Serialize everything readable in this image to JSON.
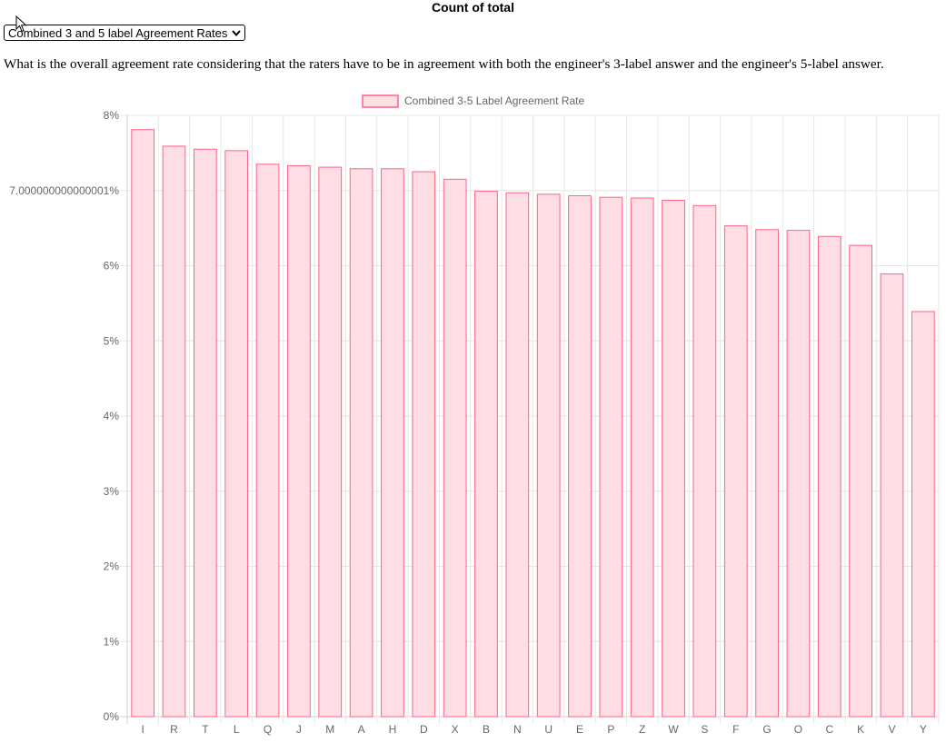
{
  "header": {
    "title": "Count of total"
  },
  "selector": {
    "selected": "Combined 3 and 5 label Agreement Rates",
    "icon": "chevron-down-icon"
  },
  "description": "What is the overall agreement rate considering that the raters have to be in agreement with both the engineer's 3-label answer and the engineer's 5-label answer.",
  "chart_data": {
    "type": "bar",
    "title": "",
    "xlabel": "",
    "ylabel": "",
    "ylim": [
      0,
      8
    ],
    "y_ticks": [
      {
        "value": 0,
        "label": "0%"
      },
      {
        "value": 1,
        "label": "1%"
      },
      {
        "value": 2,
        "label": "2%"
      },
      {
        "value": 3,
        "label": "3%"
      },
      {
        "value": 4,
        "label": "4%"
      },
      {
        "value": 5,
        "label": "5%"
      },
      {
        "value": 6,
        "label": "6%"
      },
      {
        "value": 7,
        "label": "7.000000000000001%"
      },
      {
        "value": 8,
        "label": "8%"
      }
    ],
    "grid": true,
    "legend_position": "top",
    "categories": [
      "I",
      "R",
      "T",
      "L",
      "Q",
      "J",
      "M",
      "A",
      "H",
      "D",
      "X",
      "B",
      "N",
      "U",
      "E",
      "P",
      "Z",
      "W",
      "S",
      "F",
      "G",
      "O",
      "C",
      "K",
      "V",
      "Y"
    ],
    "series": [
      {
        "name": "Combined 3-5 Label Agreement Rate",
        "fill_color": "#ffdde4",
        "border_color": "#ff6384",
        "values": [
          7.81,
          7.59,
          7.55,
          7.53,
          7.35,
          7.33,
          7.31,
          7.29,
          7.29,
          7.25,
          7.15,
          6.99,
          6.97,
          6.95,
          6.93,
          6.91,
          6.9,
          6.87,
          6.8,
          6.53,
          6.48,
          6.47,
          6.39,
          6.27,
          5.89,
          5.39
        ]
      }
    ]
  }
}
